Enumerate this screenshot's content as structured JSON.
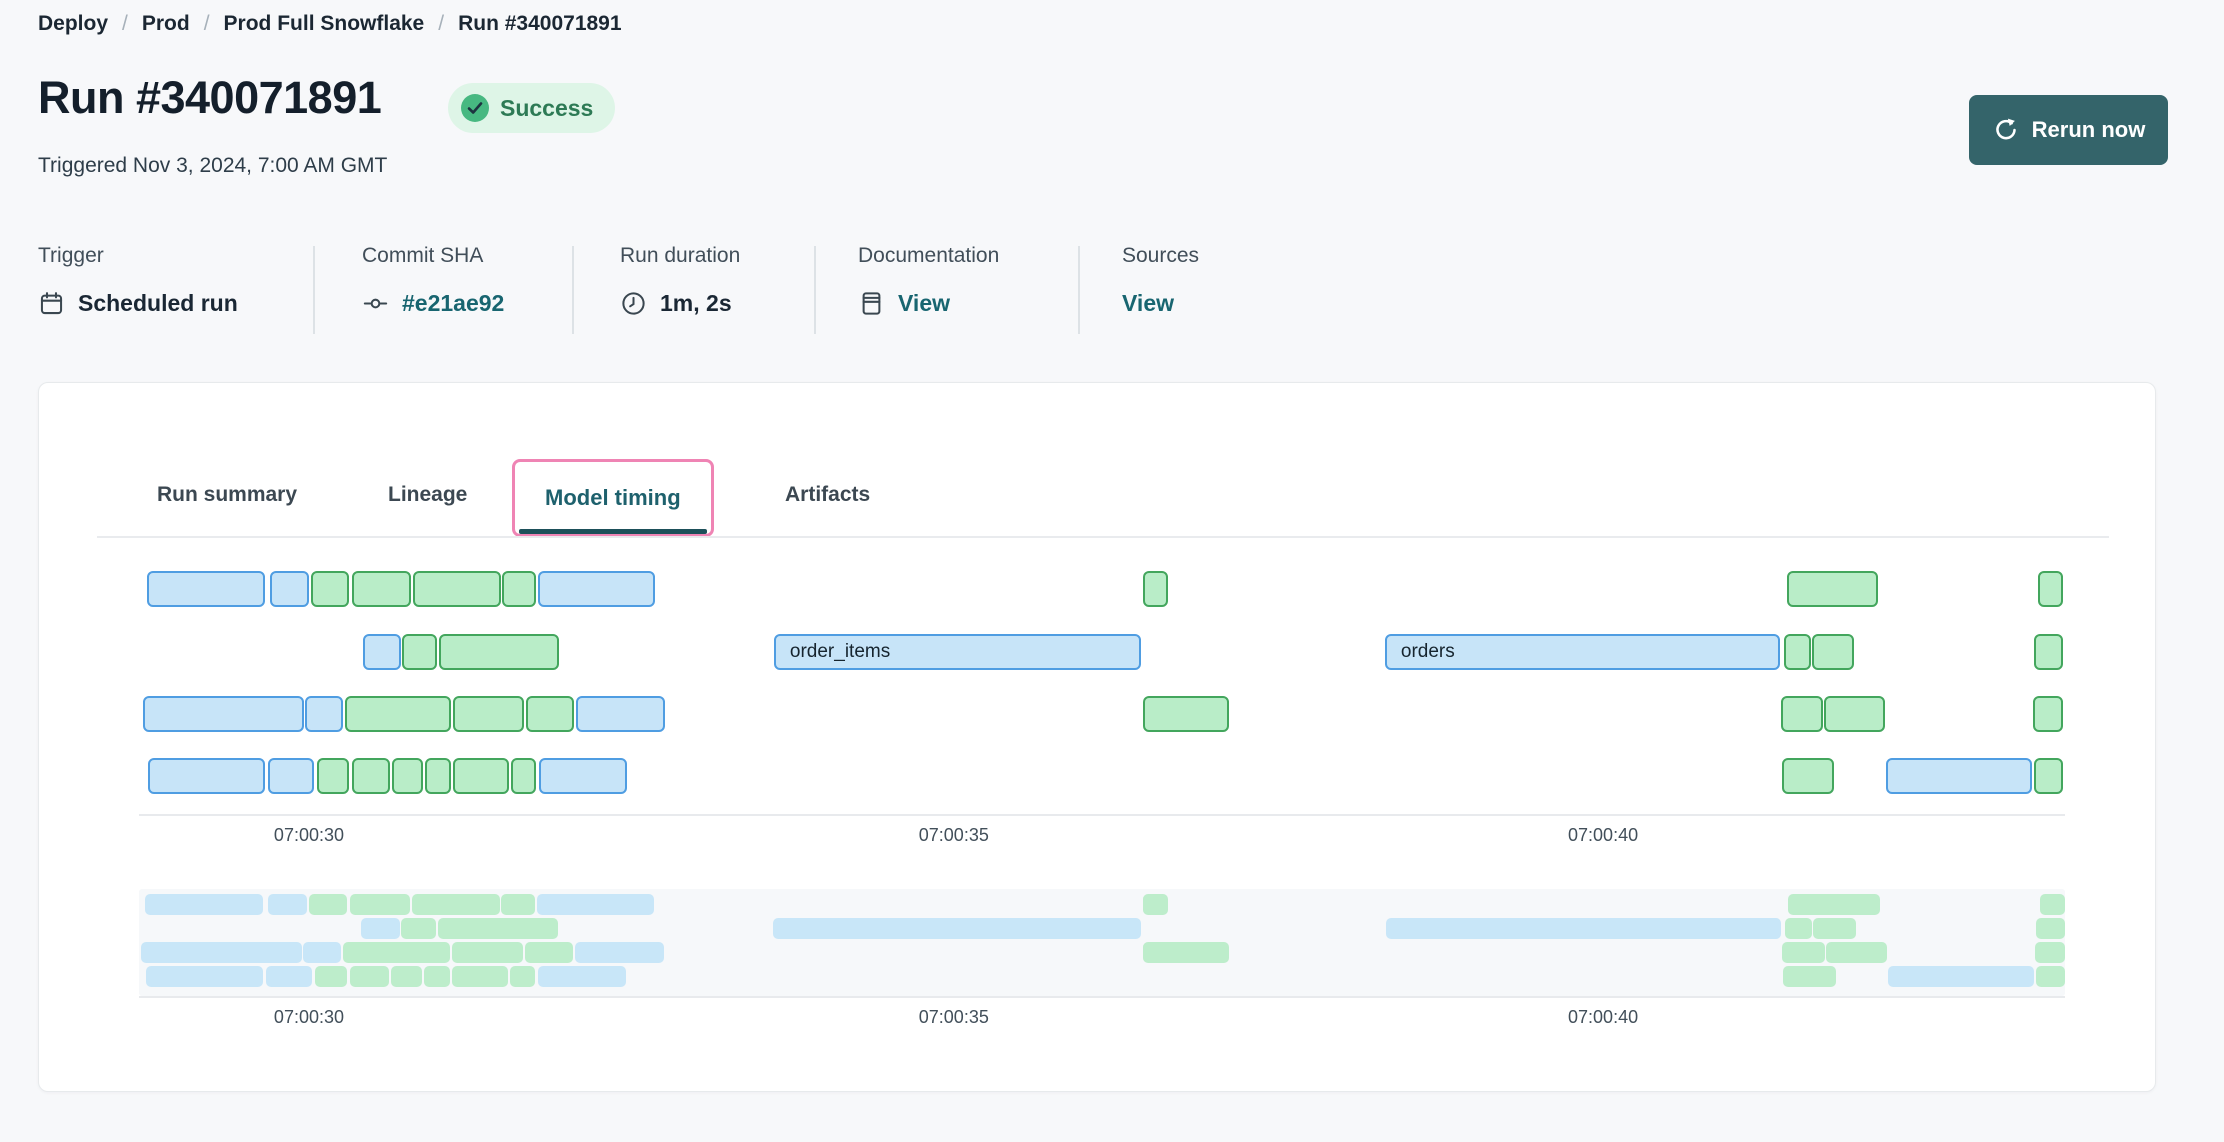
{
  "breadcrumb": {
    "separator": "/",
    "items": [
      "Deploy",
      "Prod",
      "Prod Full Snowflake",
      "Run #340071891"
    ]
  },
  "header": {
    "title": "Run #340071891",
    "status": "Success",
    "triggered": "Triggered Nov 3, 2024, 7:00 AM GMT",
    "rerun_label": "Rerun now"
  },
  "meta": {
    "columns": [
      {
        "label": "Trigger",
        "value": "Scheduled run",
        "icon": "calendar-icon"
      },
      {
        "label": "Commit SHA",
        "value": "#e21ae92",
        "icon": "commit-icon"
      },
      {
        "label": "Run duration",
        "value": "1m, 2s",
        "icon": "clock-icon"
      },
      {
        "label": "Documentation",
        "value": "View",
        "icon": "document-icon"
      },
      {
        "label": "Sources",
        "value": "View",
        "icon": null
      }
    ]
  },
  "tabs": [
    {
      "label": "Run summary",
      "active": false
    },
    {
      "label": "Lineage",
      "active": false
    },
    {
      "label": "Model timing",
      "active": true
    },
    {
      "label": "Artifacts",
      "active": false
    }
  ],
  "colors": {
    "page_bg": "#f7f8fa",
    "card_bg": "#ffffff",
    "accent_teal": "#34646a",
    "link_teal": "#186570",
    "active_tab_teal": "#1e616d",
    "highlight_pink": "#ef84b4",
    "success_bg": "#def5e7",
    "success_text": "#2d7a55",
    "success_icon": "#47b881",
    "bar_blue_fill": "#c7e4f8",
    "bar_blue_border": "#4f9de2",
    "bar_green_fill": "#b9edc8",
    "bar_green_border": "#43a65d"
  },
  "chart_data": {
    "type": "gantt",
    "title": "Model timing",
    "x_axis": {
      "start_approx": "07:00:28.7",
      "end_approx": "07:00:43.6",
      "ticks": [
        {
          "label": "07:00:30",
          "pct": 8.74
        },
        {
          "label": "07:00:35",
          "pct": 42.29
        },
        {
          "label": "07:00:40",
          "pct": 76.07
        }
      ]
    },
    "rows": [
      {
        "bars": [
          {
            "x": 0.31,
            "w": 6.14,
            "c": "blue"
          },
          {
            "x": 6.71,
            "w": 2.03,
            "c": "blue"
          },
          {
            "x": 8.84,
            "w": 1.98,
            "c": "green"
          },
          {
            "x": 10.98,
            "w": 3.07,
            "c": "green"
          },
          {
            "x": 14.15,
            "w": 4.58,
            "c": "green"
          },
          {
            "x": 18.78,
            "w": 1.77,
            "c": "green"
          },
          {
            "x": 20.66,
            "w": 6.09,
            "c": "blue"
          },
          {
            "x": 52.13,
            "w": 1.3,
            "c": "green"
          },
          {
            "x": 85.64,
            "w": 4.73,
            "c": "green"
          },
          {
            "x": 98.7,
            "w": 1.3,
            "c": "green"
          }
        ]
      },
      {
        "bars": [
          {
            "x": 11.55,
            "w": 1.98,
            "c": "blue"
          },
          {
            "x": 13.58,
            "w": 1.82,
            "c": "green"
          },
          {
            "x": 15.5,
            "w": 6.24,
            "c": "green"
          },
          {
            "x": 32.93,
            "w": 19.1,
            "c": "blue",
            "label": "order_items"
          },
          {
            "x": 64.72,
            "w": 20.55,
            "c": "blue",
            "label": "orders"
          },
          {
            "x": 85.48,
            "w": 1.4,
            "c": "green"
          },
          {
            "x": 86.94,
            "w": 2.19,
            "c": "green"
          },
          {
            "x": 98.49,
            "w": 1.51,
            "c": "green"
          }
        ]
      },
      {
        "bars": [
          {
            "x": 0.1,
            "w": 8.38,
            "c": "blue"
          },
          {
            "x": 8.53,
            "w": 1.98,
            "c": "blue"
          },
          {
            "x": 10.61,
            "w": 5.52,
            "c": "green"
          },
          {
            "x": 16.23,
            "w": 3.69,
            "c": "green"
          },
          {
            "x": 20.03,
            "w": 2.5,
            "c": "green"
          },
          {
            "x": 22.63,
            "w": 4.63,
            "c": "blue"
          },
          {
            "x": 52.13,
            "w": 4.47,
            "c": "green"
          },
          {
            "x": 85.33,
            "w": 2.19,
            "c": "green"
          },
          {
            "x": 87.57,
            "w": 3.17,
            "c": "green"
          },
          {
            "x": 98.44,
            "w": 1.56,
            "c": "green"
          }
        ]
      },
      {
        "bars": [
          {
            "x": 0.36,
            "w": 6.09,
            "c": "blue"
          },
          {
            "x": 6.61,
            "w": 2.39,
            "c": "blue"
          },
          {
            "x": 9.16,
            "w": 1.66,
            "c": "green"
          },
          {
            "x": 10.98,
            "w": 1.98,
            "c": "green"
          },
          {
            "x": 13.06,
            "w": 1.61,
            "c": "green"
          },
          {
            "x": 14.78,
            "w": 1.35,
            "c": "green"
          },
          {
            "x": 16.23,
            "w": 2.91,
            "c": "green"
          },
          {
            "x": 19.25,
            "w": 1.3,
            "c": "green"
          },
          {
            "x": 20.71,
            "w": 4.58,
            "c": "blue"
          },
          {
            "x": 85.38,
            "w": 2.71,
            "c": "green"
          },
          {
            "x": 90.79,
            "w": 7.6,
            "c": "blue"
          },
          {
            "x": 98.49,
            "w": 1.51,
            "c": "green"
          }
        ]
      }
    ]
  }
}
